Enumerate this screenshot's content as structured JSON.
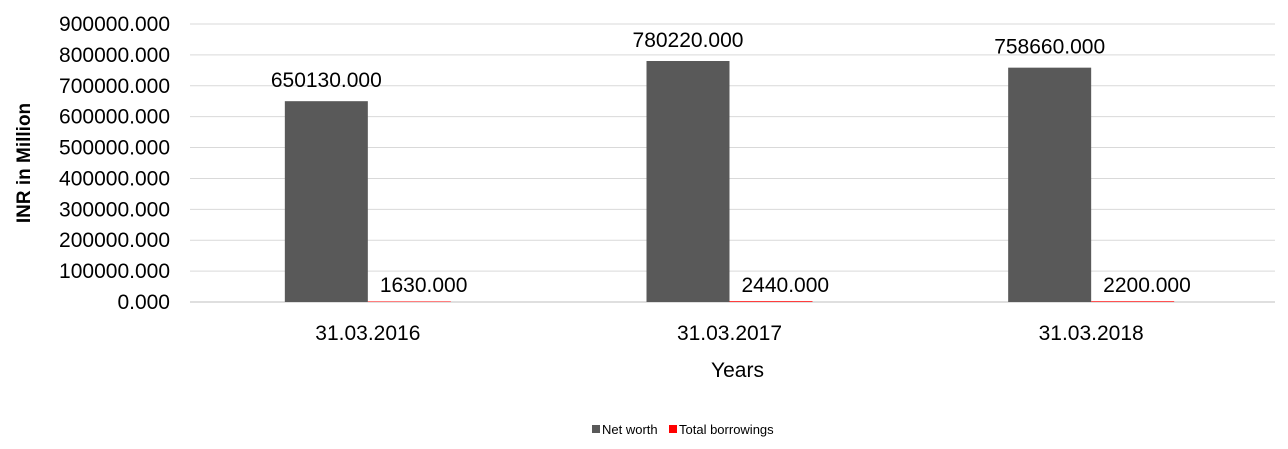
{
  "chart_data": {
    "type": "bar",
    "categories": [
      "31.03.2016",
      "31.03.2017",
      "31.03.2018"
    ],
    "series": [
      {
        "name": "Net worth",
        "values": [
          650130,
          780220,
          758660
        ],
        "color": "#595959",
        "labels": [
          "650130.000",
          "780220.000",
          "758660.000"
        ]
      },
      {
        "name": "Total borrowings",
        "values": [
          1630,
          2440,
          2200
        ],
        "color": "#ff0000",
        "labels": [
          "1630.000",
          "2440.000",
          "2200.000"
        ]
      }
    ],
    "title": "",
    "xlabel": "Years",
    "ylabel": "INR in Million",
    "ylim": [
      0,
      900000
    ],
    "yticks": [
      0,
      100000,
      200000,
      300000,
      400000,
      500000,
      600000,
      700000,
      800000,
      900000
    ],
    "ytick_labels": [
      "0.000",
      "100000.000",
      "200000.000",
      "300000.000",
      "400000.000",
      "500000.000",
      "600000.000",
      "700000.000",
      "800000.000",
      "900000.000"
    ],
    "grid": true,
    "legend_position": "bottom"
  }
}
